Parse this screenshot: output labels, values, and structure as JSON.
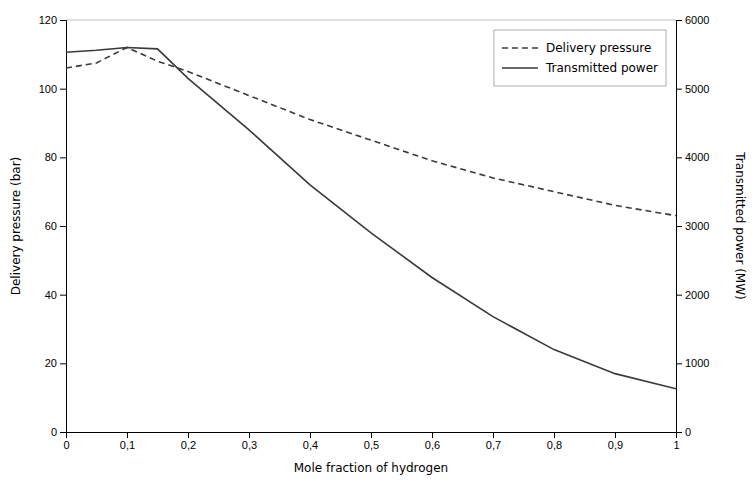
{
  "chart_data": {
    "type": "line",
    "xlabel": "Mole fraction of hydrogen",
    "ylabel": "Delivery pressure (bar)",
    "y2label": "Transmitted power (MW)",
    "x": [
      0,
      0.05,
      0.1,
      0.15,
      0.2,
      0.3,
      0.4,
      0.5,
      0.6,
      0.7,
      0.8,
      0.9,
      1.0
    ],
    "series": [
      {
        "name": "Delivery pressure",
        "color": "#3a3a3a",
        "line_style": "dashed",
        "values": [
          106,
          107.5,
          112,
          108,
          105,
          98,
          91,
          85,
          79,
          74,
          70,
          66,
          63
        ]
      },
      {
        "name": "Transmitted power",
        "color": "#3a3a3a",
        "line_style": "solid",
        "axis": "y2",
        "values": [
          5530,
          5560,
          5600,
          5580,
          5150,
          4400,
          3600,
          2900,
          2250,
          1680,
          1200,
          850,
          630
        ]
      }
    ],
    "xlim": [
      0,
      1.0
    ],
    "xticks": [
      0,
      {
        "value": 0.1,
        "label": "0,1"
      },
      {
        "value": 0.2,
        "label": "0,2"
      },
      {
        "value": 0.3,
        "label": "0,3"
      },
      {
        "value": 0.4,
        "label": "0,4"
      },
      {
        "value": 0.5,
        "label": "0,5"
      },
      {
        "value": 0.6,
        "label": "0,6"
      },
      {
        "value": 0.7,
        "label": "0,7"
      },
      {
        "value": 0.8,
        "label": "0,8"
      },
      {
        "value": 0.9,
        "label": "0,9"
      },
      1
    ],
    "ylim": [
      0,
      120
    ],
    "yticks": [
      0,
      20,
      40,
      60,
      80,
      100,
      120
    ],
    "y2lim": [
      0,
      6000
    ],
    "y2ticks": [
      0,
      1000,
      2000,
      3000,
      4000,
      5000,
      6000
    ],
    "legend": "top-right",
    "grid": false
  }
}
